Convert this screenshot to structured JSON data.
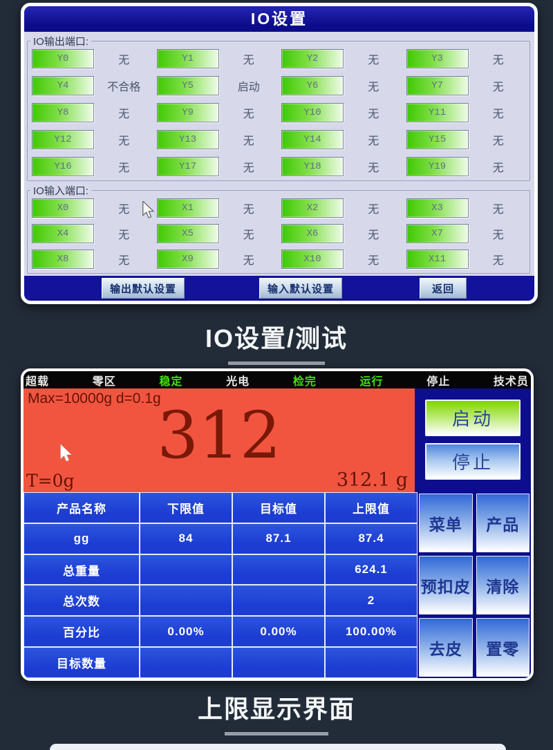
{
  "colors": {
    "page_bg": "#222c39",
    "title_bar": "#0c0c8a",
    "panel_bg": "#d7d8e9",
    "io_button_green": "#40c904",
    "footer_navy": "#12129a",
    "scale_navy": "#0d0e8e",
    "display_bg": "#f15540",
    "table_blue": "#1c3cd2",
    "status_active_green": "#3fe300"
  },
  "io_screen": {
    "title": "IO设置",
    "output_group_label": "IO输出端口:",
    "input_group_label": "IO输入端口:",
    "output_ports": [
      {
        "port": "Y0",
        "status": "无"
      },
      {
        "port": "Y1",
        "status": "无"
      },
      {
        "port": "Y2",
        "status": "无"
      },
      {
        "port": "Y3",
        "status": "无"
      },
      {
        "port": "Y4",
        "status": "不合格"
      },
      {
        "port": "Y5",
        "status": "启动"
      },
      {
        "port": "Y6",
        "status": "无"
      },
      {
        "port": "Y7",
        "status": "无"
      },
      {
        "port": "Y8",
        "status": "无"
      },
      {
        "port": "Y9",
        "status": "无"
      },
      {
        "port": "Y10",
        "status": "无"
      },
      {
        "port": "Y11",
        "status": "无"
      },
      {
        "port": "Y12",
        "status": "无"
      },
      {
        "port": "Y13",
        "status": "无"
      },
      {
        "port": "Y14",
        "status": "无"
      },
      {
        "port": "Y15",
        "status": "无"
      },
      {
        "port": "Y16",
        "status": "无"
      },
      {
        "port": "Y17",
        "status": "无"
      },
      {
        "port": "Y18",
        "status": "无"
      },
      {
        "port": "Y19",
        "status": "无"
      }
    ],
    "input_ports": [
      {
        "port": "X0",
        "status": "无"
      },
      {
        "port": "X1",
        "status": "无"
      },
      {
        "port": "X2",
        "status": "无"
      },
      {
        "port": "X3",
        "status": "无"
      },
      {
        "port": "X4",
        "status": "无"
      },
      {
        "port": "X5",
        "status": "无"
      },
      {
        "port": "X6",
        "status": "无"
      },
      {
        "port": "X7",
        "status": "无"
      },
      {
        "port": "X8",
        "status": "无"
      },
      {
        "port": "X9",
        "status": "无"
      },
      {
        "port": "X10",
        "status": "无"
      },
      {
        "port": "X11",
        "status": "无"
      }
    ],
    "footer": {
      "output_default": "输出默认设置",
      "input_default": "输入默认设置",
      "back": "返回"
    }
  },
  "caption_io": "IO设置/测试",
  "scale_screen": {
    "status_bar": [
      {
        "label": "超载",
        "name": "status-overload",
        "active": false
      },
      {
        "label": "零区",
        "name": "status-zero-zone",
        "active": false
      },
      {
        "label": "稳定",
        "name": "status-stable",
        "active": true
      },
      {
        "label": "光电",
        "name": "status-photoelectric",
        "active": false
      },
      {
        "label": "检完",
        "name": "status-check-done",
        "active": true
      },
      {
        "label": "运行",
        "name": "status-running",
        "active": true
      },
      {
        "label": "停止",
        "name": "status-stopped",
        "active": false
      },
      {
        "label": "技术员",
        "name": "status-technician",
        "active": false
      }
    ],
    "display": {
      "max_info": "Max=10000g  d=0.1g",
      "weight": "312",
      "tare": "T=0g",
      "weight_detail": "312.1 g"
    },
    "side_buttons": [
      {
        "label": "启动",
        "name": "start-button"
      },
      {
        "label": "停止",
        "name": "stop-button"
      }
    ],
    "table": {
      "headers": [
        "产品名称",
        "下限值",
        "目标值",
        "上限值"
      ],
      "rows": [
        [
          "gg",
          "84",
          "87.1",
          "87.4"
        ],
        [
          "总重量",
          "",
          "",
          "624.1"
        ],
        [
          "总次数",
          "",
          "",
          "2"
        ],
        [
          "百分比",
          "0.00%",
          "0.00%",
          "100.00%"
        ],
        [
          "目标数量",
          "",
          "",
          ""
        ]
      ]
    },
    "menu_buttons": [
      {
        "label": "菜单",
        "name": "menu-button"
      },
      {
        "label": "产品",
        "name": "product-button"
      },
      {
        "label": "预扣皮",
        "name": "pre-tare-button"
      },
      {
        "label": "清除",
        "name": "clear-button"
      },
      {
        "label": "去皮",
        "name": "tare-button"
      },
      {
        "label": "置零",
        "name": "zero-button"
      }
    ]
  },
  "caption_scale": "上限显示界面"
}
